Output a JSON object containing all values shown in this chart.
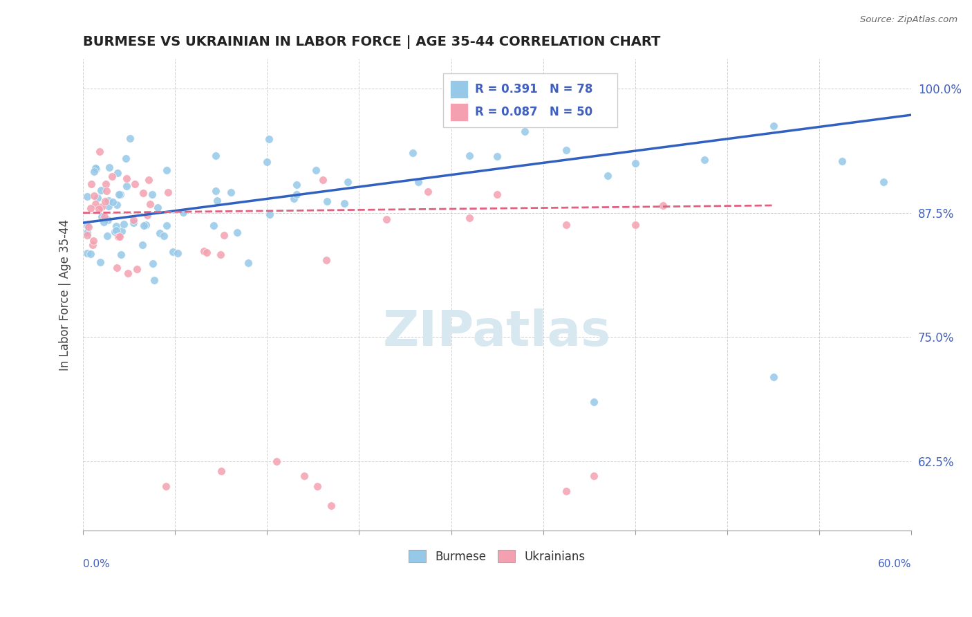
{
  "title": "BURMESE VS UKRAINIAN IN LABOR FORCE | AGE 35-44 CORRELATION CHART",
  "source": "Source: ZipAtlas.com",
  "ylabel": "In Labor Force | Age 35-44",
  "yticks": [
    0.625,
    0.75,
    0.875,
    1.0
  ],
  "ytick_labels": [
    "62.5%",
    "75.0%",
    "87.5%",
    "100.0%"
  ],
  "xlim": [
    0.0,
    0.6
  ],
  "ylim": [
    0.555,
    1.03
  ],
  "burmese_R": 0.391,
  "burmese_N": 78,
  "ukrainian_R": 0.087,
  "ukrainian_N": 50,
  "burmese_color": "#96c8e8",
  "ukrainian_color": "#f4a0b0",
  "burmese_line_color": "#3060c0",
  "ukrainian_line_color": "#e06080",
  "watermark_color": "#d8e8f0",
  "label_color": "#4060c0"
}
